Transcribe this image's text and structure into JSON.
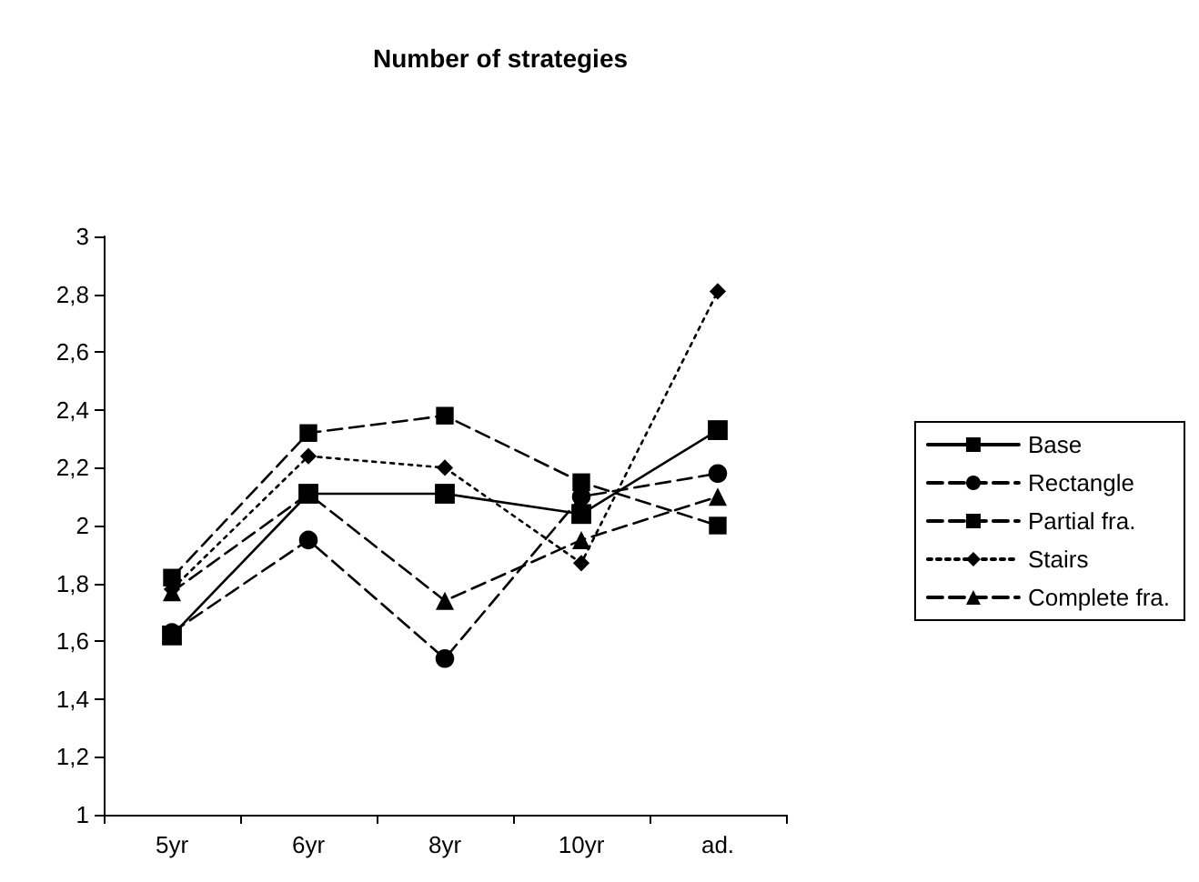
{
  "chart_data": {
    "type": "line",
    "title": "Number of strategies",
    "categories": [
      "5yr",
      "6yr",
      "8yr",
      "10yr",
      "ad."
    ],
    "series": [
      {
        "name": "Base",
        "color": "#000000",
        "marker": "square",
        "line_style": "solid",
        "values": [
          1.62,
          2.11,
          2.11,
          2.04,
          2.33
        ]
      },
      {
        "name": "Rectangle",
        "color": "#000000",
        "marker": "circle",
        "line_style": "dashed",
        "values": [
          1.63,
          1.95,
          1.54,
          2.1,
          2.18
        ]
      },
      {
        "name": "Partial fra.",
        "color": "#000000",
        "marker": "square",
        "line_style": "dashed",
        "values": [
          1.82,
          2.32,
          2.38,
          2.15,
          2.0
        ]
      },
      {
        "name": "Stairs",
        "color": "#000000",
        "marker": "diamond",
        "line_style": "dotted",
        "values": [
          1.78,
          2.24,
          2.2,
          1.87,
          2.81
        ]
      },
      {
        "name": "Complete fra.",
        "color": "#000000",
        "marker": "triangle",
        "line_style": "dashed",
        "values": [
          1.77,
          2.11,
          1.74,
          1.95,
          2.1
        ]
      }
    ],
    "ylim": [
      1,
      3
    ],
    "yticks": [
      1,
      {
        "value": 1.2,
        "label": "1,2"
      },
      {
        "value": 1.4,
        "label": "1,4"
      },
      {
        "value": 1.6,
        "label": "1,6"
      },
      {
        "value": 1.8,
        "label": "1,8"
      },
      2,
      {
        "value": 2.2,
        "label": "2,2"
      },
      {
        "value": 2.4,
        "label": "2,4"
      },
      {
        "value": 2.6,
        "label": "2,6"
      },
      {
        "value": 2.8,
        "label": "2,8"
      },
      3
    ],
    "grid": false,
    "legend": "right"
  }
}
